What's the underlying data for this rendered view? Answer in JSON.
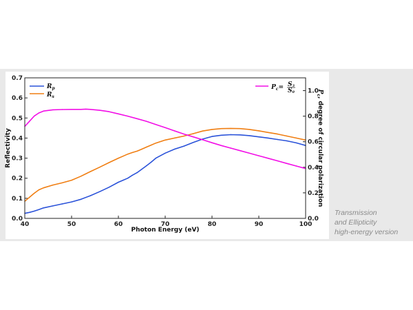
{
  "caption": {
    "lines": [
      "Transmission",
      "and Ellipticity",
      "high-energy version"
    ]
  },
  "colors": {
    "rp": "#2a52d9",
    "rs": "#f07e12",
    "pc": "#f20ee6",
    "band": "#e9e9e9",
    "axis": "#222222"
  },
  "chart_data": {
    "type": "line",
    "xlabel": "Photon Energy (eV)",
    "ylabel": "Reflectivity",
    "y2label": "P_c, degree of circular polarization",
    "xlim": [
      40,
      100
    ],
    "ylim": [
      0,
      0.7
    ],
    "y2lim": [
      0,
      1.1
    ],
    "x_ticks": [
      "40",
      "50",
      "60",
      "70",
      "80",
      "90",
      "100"
    ],
    "y_ticks": [
      "0.0",
      "0.1",
      "0.2",
      "0.3",
      "0.4",
      "0.5",
      "0.6",
      "0.7"
    ],
    "y2_ticks": [
      "0.0",
      "0.2",
      "0.4",
      "0.6",
      "0.8",
      "1.0"
    ],
    "legend_left": [
      {
        "name": "R",
        "sub": "p",
        "color_key": "rp"
      },
      {
        "name": "R",
        "sub": "s",
        "color_key": "rs"
      }
    ],
    "legend_right": {
      "label": "P",
      "sub": "c",
      "eq": "=",
      "num": "S",
      "num_sub": "3",
      "den": "S",
      "den_sub": "0"
    },
    "series": [
      {
        "name": "Rp",
        "axis": "left",
        "color_key": "rp",
        "x": [
          40,
          41,
          42,
          43,
          44,
          46,
          48,
          50,
          52,
          54,
          56,
          58,
          60,
          61,
          62,
          63,
          64,
          65,
          66,
          67,
          68,
          70,
          72,
          74,
          76,
          78,
          80,
          82,
          84,
          86,
          88,
          90,
          92,
          94,
          96,
          98,
          100
        ],
        "values": [
          0.025,
          0.03,
          0.036,
          0.044,
          0.052,
          0.062,
          0.072,
          0.082,
          0.095,
          0.113,
          0.133,
          0.155,
          0.18,
          0.19,
          0.2,
          0.215,
          0.228,
          0.245,
          0.262,
          0.28,
          0.3,
          0.325,
          0.345,
          0.36,
          0.378,
          0.395,
          0.408,
          0.414,
          0.417,
          0.416,
          0.412,
          0.406,
          0.4,
          0.393,
          0.386,
          0.376,
          0.363
        ]
      },
      {
        "name": "Rs",
        "axis": "left",
        "color_key": "rs",
        "x": [
          40,
          41,
          42,
          43,
          44,
          46,
          48,
          50,
          52,
          54,
          56,
          58,
          60,
          61,
          62,
          63,
          64,
          65,
          66,
          67,
          68,
          70,
          72,
          74,
          76,
          78,
          80,
          82,
          84,
          86,
          88,
          90,
          92,
          94,
          96,
          98,
          100
        ],
        "values": [
          0.085,
          0.105,
          0.125,
          0.142,
          0.152,
          0.166,
          0.177,
          0.19,
          0.21,
          0.233,
          0.255,
          0.278,
          0.3,
          0.31,
          0.32,
          0.328,
          0.335,
          0.345,
          0.355,
          0.365,
          0.375,
          0.39,
          0.4,
          0.41,
          0.422,
          0.435,
          0.443,
          0.447,
          0.448,
          0.447,
          0.443,
          0.436,
          0.428,
          0.42,
          0.41,
          0.4,
          0.39
        ]
      },
      {
        "name": "Pc",
        "axis": "right",
        "color_key": "pc",
        "x": [
          40,
          41,
          42,
          43,
          44,
          46,
          48,
          50,
          52,
          53,
          54,
          56,
          58,
          60,
          62,
          64,
          66,
          68,
          70,
          72,
          74,
          76,
          78,
          80,
          82,
          84,
          86,
          88,
          90,
          92,
          94,
          96,
          98,
          100
        ],
        "values": [
          0.72,
          0.76,
          0.8,
          0.825,
          0.84,
          0.85,
          0.852,
          0.853,
          0.853,
          0.855,
          0.853,
          0.846,
          0.835,
          0.818,
          0.8,
          0.78,
          0.76,
          0.735,
          0.71,
          0.685,
          0.66,
          0.638,
          0.615,
          0.592,
          0.57,
          0.55,
          0.53,
          0.51,
          0.49,
          0.47,
          0.45,
          0.43,
          0.41,
          0.39
        ]
      }
    ]
  }
}
